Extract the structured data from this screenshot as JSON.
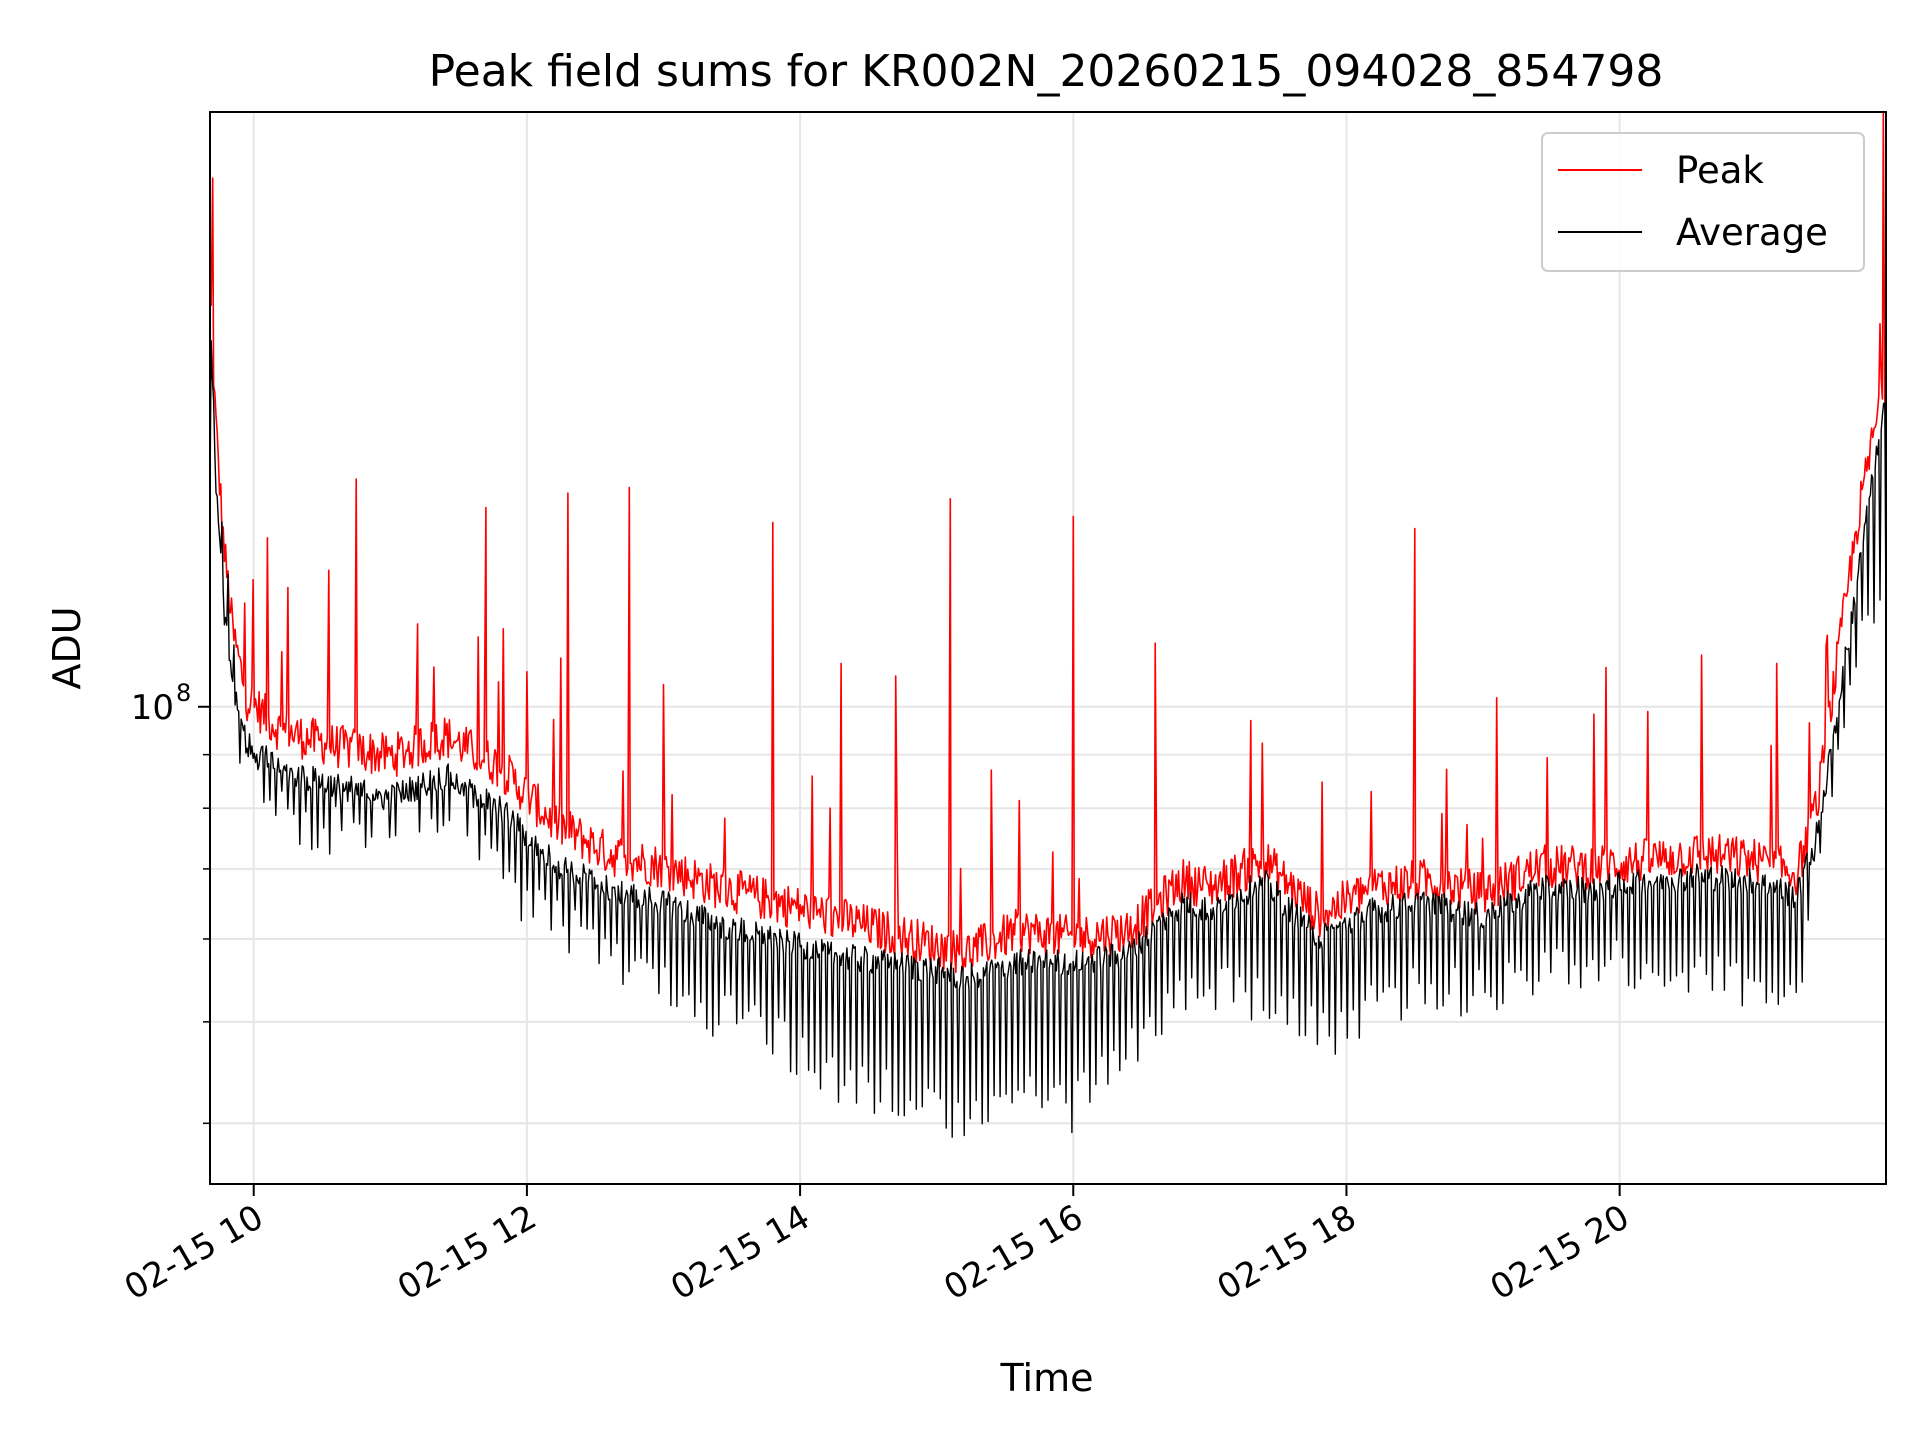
{
  "chart_data": {
    "type": "line",
    "title": "Peak field sums for KR002N_20260215_094028_854798",
    "xlabel": "Time",
    "ylabel": "ADU",
    "yscale": "log",
    "ylim": [
      35000000,
      370000000
    ],
    "xlim": [
      9.68,
      21.95
    ],
    "grid": true,
    "legend_position": "top-right",
    "x_ticks": [
      {
        "value": 10,
        "label": "02-15 10"
      },
      {
        "value": 12,
        "label": "02-15 12"
      },
      {
        "value": 14,
        "label": "02-15 14"
      },
      {
        "value": 16,
        "label": "02-15 16"
      },
      {
        "value": 18,
        "label": "02-15 18"
      },
      {
        "value": 20,
        "label": "02-15 20"
      }
    ],
    "y_major_ticks": [
      {
        "value": 100000000,
        "base": "10",
        "exp": "8"
      }
    ],
    "y_minor_ticks": [
      40000000,
      50000000,
      60000000,
      70000000,
      80000000,
      90000000
    ],
    "series": [
      {
        "name": "Peak",
        "color": "#ff0000",
        "baseline": [
          [
            9.68,
            250000000
          ],
          [
            9.72,
            185000000
          ],
          [
            9.78,
            140000000
          ],
          [
            9.85,
            115000000
          ],
          [
            9.95,
            100000000
          ],
          [
            10.2,
            93000000
          ],
          [
            10.6,
            90000000
          ],
          [
            11.0,
            88000000
          ],
          [
            11.4,
            92000000
          ],
          [
            11.8,
            86000000
          ],
          [
            12.2,
            76000000
          ],
          [
            12.6,
            71000000
          ],
          [
            13.0,
            69000000
          ],
          [
            13.4,
            66000000
          ],
          [
            13.8,
            64000000
          ],
          [
            14.2,
            62000000
          ],
          [
            14.6,
            60000000
          ],
          [
            15.0,
            58000000
          ],
          [
            15.2,
            57000000
          ],
          [
            15.6,
            60000000
          ],
          [
            16.0,
            59000000
          ],
          [
            16.4,
            60000000
          ],
          [
            16.8,
            67000000
          ],
          [
            17.0,
            66000000
          ],
          [
            17.4,
            70000000
          ],
          [
            17.8,
            62000000
          ],
          [
            18.2,
            66000000
          ],
          [
            18.6,
            67000000
          ],
          [
            19.0,
            65000000
          ],
          [
            19.4,
            69000000
          ],
          [
            19.8,
            69000000
          ],
          [
            20.2,
            70000000
          ],
          [
            20.6,
            71000000
          ],
          [
            21.0,
            70000000
          ],
          [
            21.3,
            68000000
          ],
          [
            21.45,
            80000000
          ],
          [
            21.6,
            110000000
          ],
          [
            21.75,
            150000000
          ],
          [
            21.9,
            190000000
          ],
          [
            21.95,
            200000000
          ]
        ],
        "spikes": [
          [
            9.7,
            320000000
          ],
          [
            10.1,
            145000000
          ],
          [
            10.25,
            130000000
          ],
          [
            10.55,
            135000000
          ],
          [
            10.75,
            165000000
          ],
          [
            11.2,
            120000000
          ],
          [
            11.7,
            155000000
          ],
          [
            12.0,
            108000000
          ],
          [
            12.3,
            160000000
          ],
          [
            12.75,
            162000000
          ],
          [
            13.0,
            105000000
          ],
          [
            13.8,
            150000000
          ],
          [
            14.3,
            110000000
          ],
          [
            14.7,
            107000000
          ],
          [
            15.1,
            158000000
          ],
          [
            15.4,
            87000000
          ],
          [
            16.0,
            152000000
          ],
          [
            16.6,
            115000000
          ],
          [
            17.3,
            97000000
          ],
          [
            18.5,
            148000000
          ],
          [
            19.1,
            102000000
          ],
          [
            19.9,
            109000000
          ],
          [
            20.6,
            112000000
          ],
          [
            21.15,
            110000000
          ],
          [
            21.93,
            370000000
          ]
        ]
      },
      {
        "name": "Average",
        "color": "#000000",
        "baseline": [
          [
            9.68,
            240000000
          ],
          [
            9.72,
            170000000
          ],
          [
            9.78,
            125000000
          ],
          [
            9.85,
            105000000
          ],
          [
            9.95,
            92000000
          ],
          [
            10.2,
            87000000
          ],
          [
            10.6,
            84000000
          ],
          [
            11.0,
            82000000
          ],
          [
            11.4,
            86000000
          ],
          [
            11.8,
            80000000
          ],
          [
            12.2,
            71000000
          ],
          [
            12.6,
            67000000
          ],
          [
            13.0,
            65000000
          ],
          [
            13.4,
            62000000
          ],
          [
            13.8,
            60000000
          ],
          [
            14.2,
            58000000
          ],
          [
            14.6,
            57000000
          ],
          [
            15.0,
            56000000
          ],
          [
            15.2,
            55000000
          ],
          [
            15.6,
            57000000
          ],
          [
            16.0,
            57000000
          ],
          [
            16.4,
            58000000
          ],
          [
            16.8,
            65000000
          ],
          [
            17.0,
            64000000
          ],
          [
            17.4,
            68000000
          ],
          [
            17.8,
            60000000
          ],
          [
            18.2,
            64000000
          ],
          [
            18.6,
            65000000
          ],
          [
            19.0,
            63000000
          ],
          [
            19.4,
            67000000
          ],
          [
            19.8,
            67000000
          ],
          [
            20.2,
            68000000
          ],
          [
            20.6,
            69000000
          ],
          [
            21.0,
            68000000
          ],
          [
            21.3,
            66000000
          ],
          [
            21.45,
            76000000
          ],
          [
            21.6,
            100000000
          ],
          [
            21.75,
            135000000
          ],
          [
            21.9,
            180000000
          ],
          [
            21.95,
            195000000
          ]
        ],
        "dips": [
          [
            9.75,
            160000000
          ],
          [
            9.9,
            88000000
          ],
          [
            10.1,
            75000000
          ],
          [
            10.5,
            72000000
          ],
          [
            11.0,
            74000000
          ],
          [
            11.5,
            76000000
          ],
          [
            11.9,
            62000000
          ],
          [
            12.3,
            58000000
          ],
          [
            12.8,
            52000000
          ],
          [
            13.2,
            49000000
          ],
          [
            13.6,
            47000000
          ],
          [
            14.0,
            44000000
          ],
          [
            14.4,
            41000000
          ],
          [
            14.8,
            40000000
          ],
          [
            15.2,
            38000000
          ],
          [
            15.6,
            40000000
          ],
          [
            16.0,
            39000000
          ],
          [
            16.4,
            45000000
          ],
          [
            16.8,
            50000000
          ],
          [
            17.2,
            51000000
          ],
          [
            17.6,
            48000000
          ],
          [
            17.9,
            46000000
          ],
          [
            18.2,
            49000000
          ],
          [
            18.6,
            51000000
          ],
          [
            19.0,
            50000000
          ],
          [
            19.5,
            53000000
          ],
          [
            20.0,
            54000000
          ],
          [
            20.5,
            53000000
          ],
          [
            21.0,
            51000000
          ],
          [
            21.3,
            50000000
          ],
          [
            21.5,
            75000000
          ],
          [
            21.8,
            115000000
          ]
        ]
      }
    ]
  }
}
